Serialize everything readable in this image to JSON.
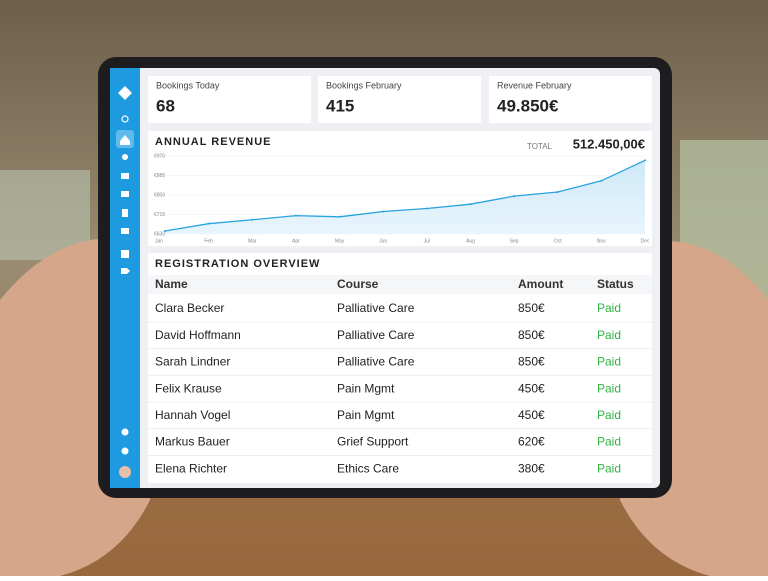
{
  "cards": [
    {
      "label": "Bookings Today",
      "value": "68"
    },
    {
      "label": "Bookings February",
      "value": "415"
    },
    {
      "label": "Revenue February",
      "value": "49.850€"
    }
  ],
  "revenue": {
    "title": "ANNUAL REVENUE",
    "total_label": "TOTAL",
    "total": "512.450,00€",
    "chart": {
      "type": "area",
      "color": "#29a3e0",
      "categories": [
        "Jan",
        "Feb",
        "Mar",
        "Apr",
        "May",
        "Jun",
        "Jul",
        "Aug",
        "Sep",
        "Oct",
        "Nov",
        "Dec"
      ],
      "values": [
        643,
        675,
        692,
        710,
        705,
        728,
        741,
        760,
        795,
        813,
        862,
        951
      ],
      "ylim": [
        630,
        970
      ],
      "yticks": [
        {
          "value": 630,
          "label": "€630"
        },
        {
          "value": 715,
          "label": "€715"
        },
        {
          "value": 800,
          "label": "€800"
        },
        {
          "value": 885,
          "label": "€885"
        },
        {
          "value": 970,
          "label": "€970"
        }
      ],
      "grid": true
    }
  },
  "table": {
    "title": "REGISTRATION OVERVIEW",
    "columns": [
      "Name",
      "Course",
      "Amount",
      "Status"
    ],
    "rows": [
      [
        "Clara Becker",
        "Palliative Care",
        "850€",
        "Paid"
      ],
      [
        "David Hoffmann",
        "Palliative Care",
        "850€",
        "Paid"
      ],
      [
        "Sarah Lindner",
        "Palliative Care",
        "850€",
        "Paid"
      ],
      [
        "Felix Krause",
        "Pain Mgmt",
        "450€",
        "Paid"
      ],
      [
        "Hannah Vogel",
        "Pain Mgmt",
        "450€",
        "Paid"
      ],
      [
        "Markus Bauer",
        "Grief Support",
        "620€",
        "Paid"
      ],
      [
        "Elena Richter",
        "Ethics Care",
        "380€",
        "Paid"
      ]
    ]
  }
}
